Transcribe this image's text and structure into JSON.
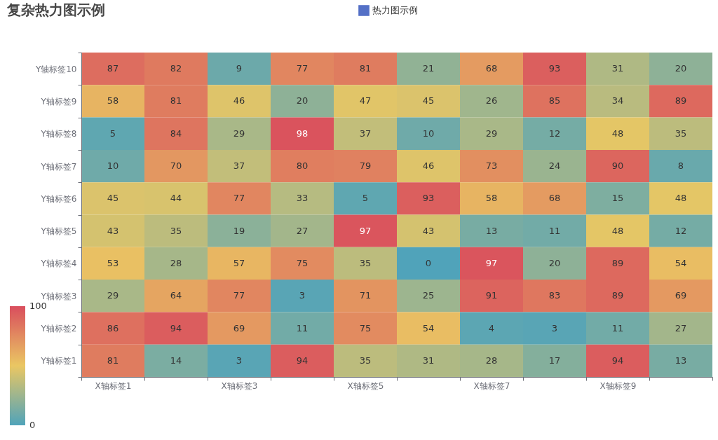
{
  "chart_data": {
    "type": "heatmap",
    "title": "复杂热力图示例",
    "categories": [
      "X轴标签1",
      null,
      "X轴标签3",
      null,
      "X轴标签5",
      null,
      "X轴标签7",
      null,
      "X轴标签9",
      null
    ],
    "y_categories": [
      "Y轴标签10",
      "Y轴标签9",
      "Y轴标签8",
      "Y轴标签7",
      "Y轴标签6",
      "Y轴标签5",
      "Y轴标签4",
      "Y轴标签3",
      "Y轴标签2",
      "Y轴标签1"
    ],
    "legend_title": "热力图示例",
    "cells": [
      [
        87,
        82,
        9,
        77,
        81,
        21,
        68,
        93,
        31,
        20
      ],
      [
        58,
        81,
        46,
        20,
        47,
        45,
        26,
        85,
        34,
        89
      ],
      [
        5,
        84,
        29,
        98,
        37,
        10,
        29,
        12,
        48,
        35
      ],
      [
        10,
        70,
        37,
        80,
        79,
        46,
        73,
        24,
        90,
        8
      ],
      [
        45,
        44,
        77,
        33,
        5,
        93,
        58,
        68,
        15,
        48
      ],
      [
        43,
        35,
        19,
        27,
        97,
        43,
        13,
        11,
        48,
        12
      ],
      [
        53,
        28,
        57,
        75,
        35,
        0,
        97,
        20,
        89,
        54
      ],
      [
        29,
        64,
        77,
        3,
        71,
        25,
        91,
        83,
        89,
        69
      ],
      [
        86,
        94,
        69,
        11,
        75,
        54,
        4,
        3,
        11,
        27
      ],
      [
        81,
        14,
        3,
        94,
        35,
        31,
        28,
        17,
        94,
        13
      ]
    ],
    "clim": [
      0,
      100
    ],
    "cticks": [
      0,
      100
    ],
    "data_labels": true
  }
}
